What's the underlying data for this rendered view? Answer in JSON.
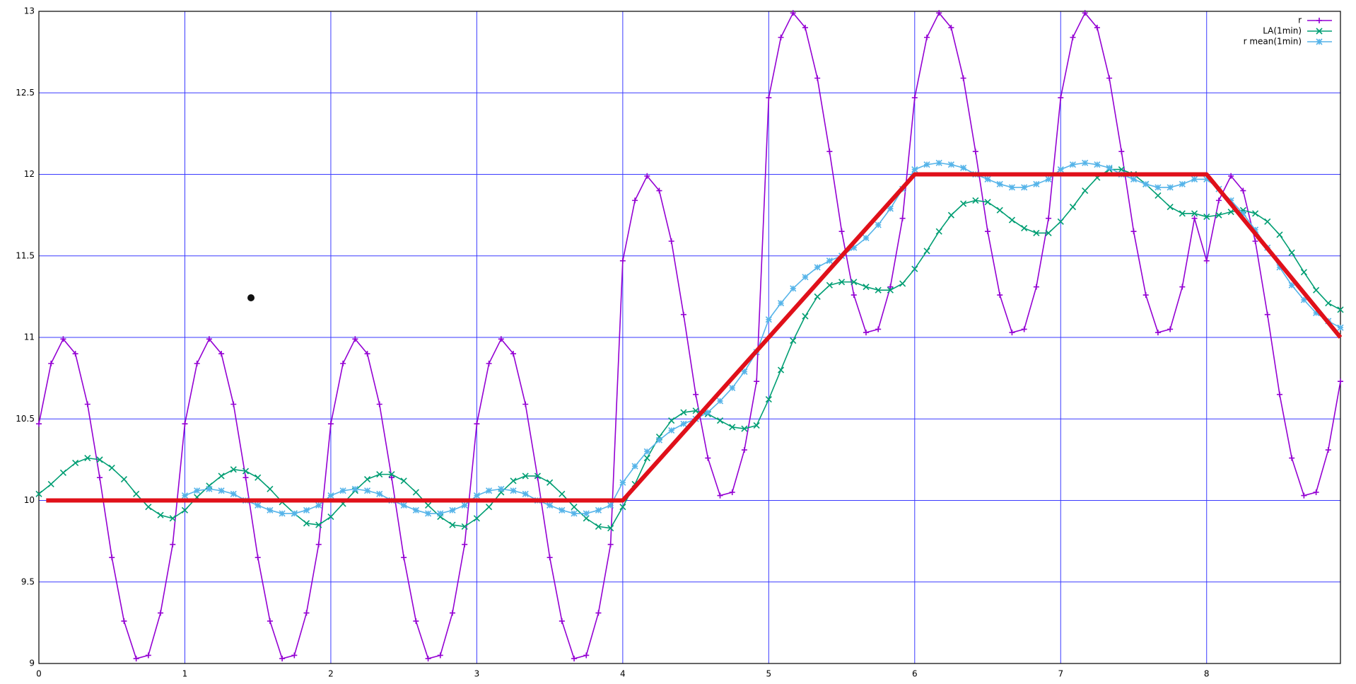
{
  "chart_data": {
    "type": "line",
    "x": [
      0,
      0.0833,
      0.1667,
      0.25,
      0.3333,
      0.4167,
      0.5,
      0.5833,
      0.6667,
      0.75,
      0.8333,
      0.9167,
      1,
      1.0833,
      1.1667,
      1.25,
      1.3333,
      1.4167,
      1.5,
      1.5833,
      1.6667,
      1.75,
      1.8333,
      1.9167,
      2,
      2.0833,
      2.1667,
      2.25,
      2.3333,
      2.4167,
      2.5,
      2.5833,
      2.6667,
      2.75,
      2.8333,
      2.9167,
      3,
      3.0833,
      3.1667,
      3.25,
      3.3333,
      3.4167,
      3.5,
      3.5833,
      3.6667,
      3.75,
      3.8333,
      3.9167,
      4,
      4.0833,
      4.1667,
      4.25,
      4.3333,
      4.4167,
      4.5,
      4.5833,
      4.6667,
      4.75,
      4.8333,
      4.9167,
      5,
      5.0833,
      5.1667,
      5.25,
      5.3333,
      5.4167,
      5.5,
      5.5833,
      5.6667,
      5.75,
      5.8333,
      5.9167,
      6,
      6.0833,
      6.1667,
      6.25,
      6.3333,
      6.4167,
      6.5,
      6.5833,
      6.6667,
      6.75,
      6.8333,
      6.9167,
      7,
      7.0833,
      7.1667,
      7.25,
      7.3333,
      7.4167,
      7.5,
      7.5833,
      7.6667,
      7.75,
      7.8333,
      7.9167,
      8,
      8.0833,
      8.1667,
      8.25,
      8.3333,
      8.4167,
      8.5,
      8.5833,
      8.6667,
      8.75,
      8.8333,
      8.9167
    ],
    "series": [
      {
        "name": "r",
        "color": "#9400d3",
        "marker": "plus",
        "values": [
          10.47,
          10.84,
          10.99,
          10.9,
          10.59,
          10.14,
          9.65,
          9.26,
          9.03,
          9.05,
          9.31,
          9.73,
          10.47,
          10.84,
          10.99,
          10.9,
          10.59,
          10.14,
          9.65,
          9.26,
          9.03,
          9.05,
          9.31,
          9.73,
          10.47,
          10.84,
          10.99,
          10.9,
          10.59,
          10.14,
          9.65,
          9.26,
          9.03,
          9.05,
          9.31,
          9.73,
          10.47,
          10.84,
          10.99,
          10.9,
          10.59,
          10.14,
          9.65,
          9.26,
          9.03,
          9.05,
          9.31,
          9.73,
          11.47,
          11.84,
          11.99,
          11.9,
          11.59,
          11.14,
          10.65,
          10.26,
          10.03,
          10.05,
          10.31,
          10.73,
          12.47,
          12.84,
          12.99,
          12.9,
          12.59,
          12.14,
          11.65,
          11.26,
          11.03,
          11.05,
          11.31,
          11.73,
          12.47,
          12.84,
          12.99,
          12.9,
          12.59,
          12.14,
          11.65,
          11.26,
          11.03,
          11.05,
          11.31,
          11.73,
          12.47,
          12.84,
          12.99,
          12.9,
          12.59,
          12.14,
          11.65,
          11.26,
          11.03,
          11.05,
          11.31,
          11.73,
          11.47,
          11.84,
          11.99,
          11.9,
          11.59,
          11.14,
          10.65,
          10.26,
          10.03,
          10.05,
          10.31,
          10.73
        ]
      },
      {
        "name": "LA(1min)",
        "color": "#009e73",
        "marker": "cross",
        "values": [
          10.04,
          10.1,
          10.17,
          10.23,
          10.26,
          10.25,
          10.2,
          10.13,
          10.04,
          9.96,
          9.91,
          9.89,
          9.94,
          10.02,
          10.09,
          10.15,
          10.19,
          10.18,
          10.14,
          10.07,
          9.99,
          9.92,
          9.86,
          9.85,
          9.9,
          9.98,
          10.06,
          10.13,
          10.16,
          10.16,
          10.12,
          10.05,
          9.97,
          9.9,
          9.85,
          9.84,
          9.89,
          9.96,
          10.05,
          10.12,
          10.15,
          10.15,
          10.11,
          10.04,
          9.96,
          9.89,
          9.84,
          9.83,
          9.96,
          10.1,
          10.26,
          10.39,
          10.49,
          10.54,
          10.55,
          10.53,
          10.49,
          10.45,
          10.44,
          10.46,
          10.62,
          10.8,
          10.98,
          11.13,
          11.25,
          11.32,
          11.34,
          11.34,
          11.31,
          11.29,
          11.29,
          11.33,
          11.42,
          11.53,
          11.65,
          11.75,
          11.82,
          11.84,
          11.83,
          11.78,
          11.72,
          11.67,
          11.64,
          11.64,
          11.71,
          11.8,
          11.9,
          11.98,
          12.03,
          12.03,
          12.0,
          11.94,
          11.87,
          11.8,
          11.76,
          11.76,
          11.74,
          11.75,
          11.77,
          11.78,
          11.76,
          11.71,
          11.63,
          11.52,
          11.4,
          11.29,
          11.21,
          11.17
        ]
      },
      {
        "name": "r mean(1min)",
        "color": "#56b4e9",
        "marker": "star",
        "values": [
          null,
          null,
          null,
          null,
          null,
          null,
          null,
          null,
          null,
          null,
          null,
          null,
          10.03,
          10.06,
          10.07,
          10.06,
          10.04,
          10.0,
          9.97,
          9.94,
          9.92,
          9.92,
          9.94,
          9.97,
          10.03,
          10.06,
          10.07,
          10.06,
          10.04,
          10.0,
          9.97,
          9.94,
          9.92,
          9.92,
          9.94,
          9.97,
          10.03,
          10.06,
          10.07,
          10.06,
          10.04,
          10.0,
          9.97,
          9.94,
          9.92,
          9.92,
          9.94,
          9.97,
          10.11,
          10.21,
          10.3,
          10.37,
          10.43,
          10.47,
          10.5,
          10.54,
          10.61,
          10.69,
          10.79,
          10.91,
          11.11,
          11.21,
          11.3,
          11.37,
          11.43,
          11.47,
          11.5,
          11.55,
          11.61,
          11.69,
          11.79,
          11.91,
          12.03,
          12.06,
          12.07,
          12.06,
          12.04,
          12.0,
          11.97,
          11.94,
          11.92,
          11.92,
          11.94,
          11.97,
          12.03,
          12.06,
          12.07,
          12.06,
          12.04,
          12.0,
          11.97,
          11.94,
          11.92,
          11.92,
          11.94,
          11.97,
          11.97,
          11.91,
          11.84,
          11.76,
          11.66,
          11.55,
          11.43,
          11.32,
          11.23,
          11.15,
          11.1,
          11.06
        ]
      }
    ],
    "overlay": {
      "color": "#e0101a",
      "x": [
        0.05,
        4,
        6,
        8,
        8.9167
      ],
      "values": [
        10,
        10,
        12,
        12,
        11
      ]
    },
    "xlim": [
      0,
      8.9167
    ],
    "xticks": [
      0,
      1,
      2,
      3,
      4,
      5,
      6,
      7,
      8
    ],
    "ylim": [
      9,
      13
    ],
    "yticks": [
      9,
      9.5,
      10,
      10.5,
      11,
      11.5,
      12,
      12.5,
      13
    ],
    "grid": true,
    "grid_color": "#3a3aff",
    "legend": "top-right"
  }
}
